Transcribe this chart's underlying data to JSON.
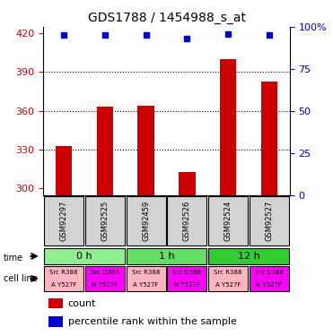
{
  "title": "GDS1788 / 1454988_s_at",
  "samples": [
    "GSM92297",
    "GSM92525",
    "GSM92459",
    "GSM92526",
    "GSM92524",
    "GSM92527"
  ],
  "counts": [
    333,
    363,
    364,
    313,
    400,
    383
  ],
  "percentiles": [
    95,
    95,
    95,
    93,
    96,
    95
  ],
  "ylim_left": [
    295,
    425
  ],
  "yticks_left": [
    300,
    330,
    360,
    390,
    420
  ],
  "ylim_right": [
    0,
    100
  ],
  "yticks_right": [
    0,
    25,
    50,
    75,
    100
  ],
  "time_groups": [
    {
      "label": "0 h",
      "span": [
        0,
        2
      ],
      "color": "#90EE90"
    },
    {
      "label": "1 h",
      "span": [
        2,
        4
      ],
      "color": "#66DD66"
    },
    {
      "label": "12 h",
      "span": [
        4,
        6
      ],
      "color": "#33CC33"
    }
  ],
  "cell_lines": [
    {
      "line1": "Src R388",
      "line2": "A Y527F",
      "color": "#FFB6C1"
    },
    {
      "line1": "Src D386",
      "line2": "N Y527F",
      "color": "#FF00FF"
    },
    {
      "line1": "Src R388",
      "line2": "A Y527F",
      "color": "#FFB6C1"
    },
    {
      "line1": "Src D386",
      "line2": "N Y527F",
      "color": "#FF00FF"
    },
    {
      "line1": "Src R388",
      "line2": "A Y527F",
      "color": "#FFB6C1"
    },
    {
      "line1": "Src D386",
      "line2": "N Y527F",
      "color": "#FF00FF"
    }
  ],
  "bar_color": "#CC0000",
  "dot_color": "#0000CC",
  "bar_width": 0.4,
  "grid_color": "#000000",
  "left_axis_color": "#CC0000",
  "right_axis_color": "#0000CC"
}
